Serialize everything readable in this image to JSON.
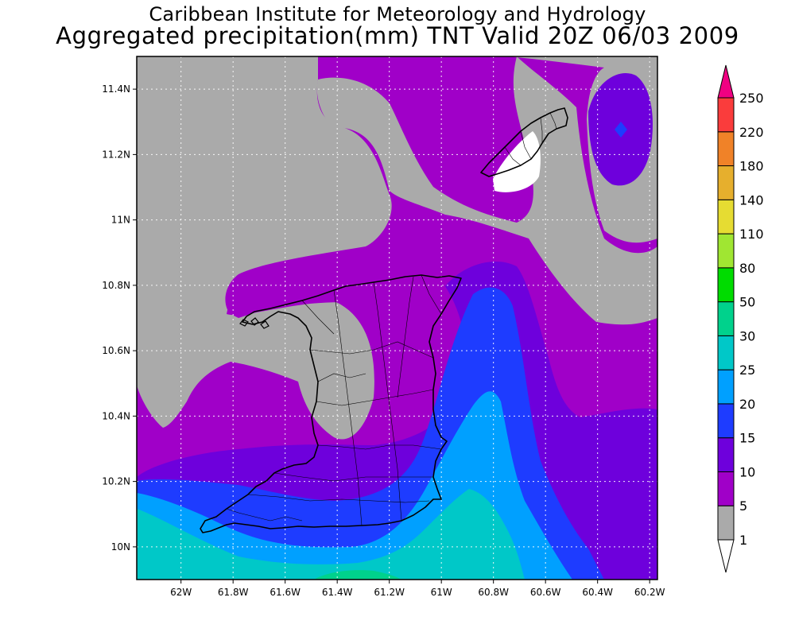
{
  "title_line1": "Caribbean Institute for Meteorology and Hydrology",
  "title_line2": "Aggregated precipitation(mm) TNT Valid 20Z 06/03 2009",
  "map": {
    "lon_range": [
      -62.17,
      -60.17
    ],
    "lat_range": [
      9.9,
      11.5
    ],
    "lon_ticks": [
      {
        "value": -62.0,
        "label": "62W"
      },
      {
        "value": -61.8,
        "label": "61.8W"
      },
      {
        "value": -61.6,
        "label": "61.6W"
      },
      {
        "value": -61.4,
        "label": "61.4W"
      },
      {
        "value": -61.2,
        "label": "61.2W"
      },
      {
        "value": -61.0,
        "label": "61W"
      },
      {
        "value": -60.8,
        "label": "60.8W"
      },
      {
        "value": -60.6,
        "label": "60.6W"
      },
      {
        "value": -60.4,
        "label": "60.4W"
      },
      {
        "value": -60.2,
        "label": "60.2W"
      }
    ],
    "lat_ticks": [
      {
        "value": 11.4,
        "label": "11.4N"
      },
      {
        "value": 11.2,
        "label": "11.2N"
      },
      {
        "value": 11.0,
        "label": "11N"
      },
      {
        "value": 10.8,
        "label": "10.8N"
      },
      {
        "value": 10.6,
        "label": "10.6N"
      },
      {
        "value": 10.4,
        "label": "10.4N"
      },
      {
        "value": 10.2,
        "label": "10.2N"
      },
      {
        "value": 10.0,
        "label": "10N"
      }
    ],
    "gridlines": true
  },
  "colorbar": {
    "levels": [
      "1",
      "5",
      "10",
      "15",
      "20",
      "25",
      "30",
      "50",
      "80",
      "110",
      "140",
      "180",
      "220",
      "250"
    ],
    "colors": [
      "#ffffff",
      "#aaaaaa",
      "#a000c8",
      "#6e00dc",
      "#1e3cff",
      "#00a0ff",
      "#00c8c8",
      "#00d28c",
      "#00dc00",
      "#a0e632",
      "#e6dc32",
      "#e6af2d",
      "#f08228",
      "#fa3c3c",
      "#f00082"
    ]
  }
}
